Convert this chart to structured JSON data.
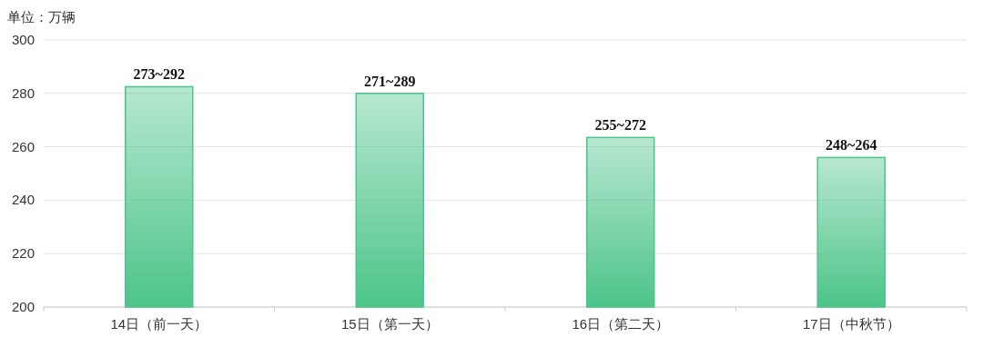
{
  "chart_data": {
    "type": "bar",
    "ylabel": "单位：万辆",
    "categories": [
      "14日（前一天）",
      "15日（第一天）",
      "16日（第二天）",
      "17日（中秋节）"
    ],
    "values": [
      282.5,
      280,
      263.5,
      256
    ],
    "annotations": [
      {
        "text": "273~292",
        "x": "14日（前一天）",
        "y": 282.5
      },
      {
        "text": "271~289",
        "x": "15日（第一天）",
        "y": 280
      },
      {
        "text": "255~272",
        "x": "16日（第二天）",
        "y": 263.5
      },
      {
        "text": "248~264",
        "x": "17日（中秋节）",
        "y": 256
      }
    ],
    "color": "#4cc48a",
    "ylim": [
      200,
      300
    ],
    "yticks": [
      200,
      220,
      240,
      260,
      280,
      300
    ],
    "grid": "y"
  }
}
